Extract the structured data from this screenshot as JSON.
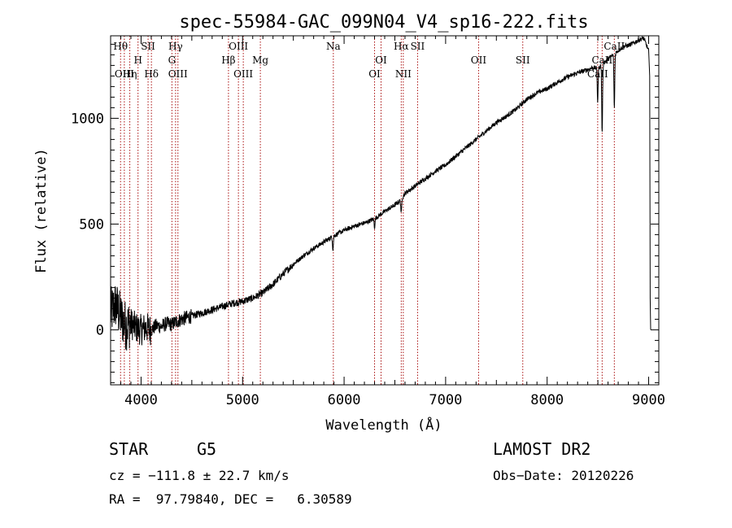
{
  "chart_data": {
    "type": "line",
    "title": "spec-55984-GAC_099N04_V4_sp16-222.fits",
    "xlabel": "Wavelength (Å)",
    "ylabel": "Flux (relative)",
    "xlim": [
      3700,
      9100
    ],
    "ylim": [
      -260,
      1390
    ],
    "x_ticks": [
      "4000",
      "5000",
      "6000",
      "7000",
      "8000",
      "9000"
    ],
    "y_ticks": [
      "0",
      "500",
      "1000"
    ],
    "x_tick_values": [
      4000,
      5000,
      6000,
      7000,
      8000,
      9000
    ],
    "y_tick_values": [
      0,
      500,
      1000
    ],
    "grid": false,
    "series": [
      {
        "x": [
          3700,
          3750,
          3800,
          3850,
          3900,
          3950,
          4000,
          4050,
          4100,
          4150,
          4200,
          4250,
          4300,
          4350,
          4400,
          4500,
          4600,
          4700,
          4800,
          4900,
          5000,
          5100,
          5200,
          5300,
          5400,
          5500,
          5600,
          5700,
          5800,
          5900,
          6000,
          6100,
          6200,
          6300,
          6400,
          6500,
          6550,
          6600,
          6700,
          6800,
          6900,
          7000,
          7100,
          7200,
          7300,
          7400,
          7500,
          7600,
          7700,
          7800,
          7900,
          8000,
          8100,
          8200,
          8300,
          8400,
          8450,
          8500,
          8550,
          8600,
          8650,
          8700,
          8750,
          8800,
          8850,
          8900,
          8950,
          9000
        ],
        "y": [
          80,
          120,
          60,
          20,
          30,
          10,
          0,
          10,
          0,
          20,
          15,
          30,
          25,
          40,
          50,
          65,
          80,
          95,
          110,
          125,
          135,
          150,
          175,
          215,
          265,
          310,
          350,
          385,
          415,
          445,
          470,
          490,
          505,
          525,
          560,
          590,
          610,
          645,
          680,
          715,
          750,
          780,
          820,
          860,
          900,
          940,
          980,
          1010,
          1045,
          1090,
          1120,
          1140,
          1170,
          1195,
          1215,
          1230,
          1240,
          1235,
          1260,
          1280,
          1300,
          1320,
          1340,
          1345,
          1355,
          1370,
          1380,
          1320
        ]
      }
    ],
    "absorption_features": [
      {
        "x": 5890,
        "depth": 60
      },
      {
        "x": 6300,
        "depth": 40
      },
      {
        "x": 6563,
        "depth": 70
      },
      {
        "x": 8498,
        "depth": 160
      },
      {
        "x": 8542,
        "depth": 330
      },
      {
        "x": 8662,
        "depth": 260
      }
    ],
    "lines": [
      {
        "label": "Hθ",
        "x": 3798,
        "row": 1
      },
      {
        "label": "OIII",
        "x": 3835,
        "row": 3
      },
      {
        "label": "Hη",
        "x": 3889,
        "row": 3
      },
      {
        "label": "H",
        "x": 3970,
        "row": 2
      },
      {
        "label": "SII",
        "x": 4069,
        "row": 1
      },
      {
        "label": "Hδ",
        "x": 4102,
        "row": 3
      },
      {
        "label": "Hγ",
        "x": 4340,
        "row": 1
      },
      {
        "label": "G",
        "x": 4304,
        "row": 2
      },
      {
        "label": "OIII",
        "x": 4363,
        "row": 3
      },
      {
        "label": "Hβ",
        "x": 4861,
        "row": 2
      },
      {
        "label": "OIII",
        "x": 4959,
        "row": 1
      },
      {
        "label": "OIII",
        "x": 5007,
        "row": 3
      },
      {
        "label": "Mg",
        "x": 5175,
        "row": 2
      },
      {
        "label": "Na",
        "x": 5894,
        "row": 1
      },
      {
        "label": "OI",
        "x": 6300,
        "row": 3
      },
      {
        "label": "OI",
        "x": 6364,
        "row": 2
      },
      {
        "label": "Hα",
        "x": 6563,
        "row": 1
      },
      {
        "label": "NII",
        "x": 6583,
        "row": 3
      },
      {
        "label": "SII",
        "x": 6724,
        "row": 1
      },
      {
        "label": "OII",
        "x": 7325,
        "row": 2
      },
      {
        "label": "SII",
        "x": 7760,
        "row": 2
      },
      {
        "label": "CaII",
        "x": 8498,
        "row": 3
      },
      {
        "label": "CaII",
        "x": 8542,
        "row": 2
      },
      {
        "label": "CaII",
        "x": 8662,
        "row": 1
      }
    ]
  },
  "info": {
    "object_class": "STAR",
    "subclass": "G5",
    "survey": "LAMOST DR2",
    "cz": "cz = −111.8 ± 22.7 km/s",
    "obs_date": "Obs−Date: 20120226",
    "radec": "RA =  97.79840, DEC =   6.30589"
  }
}
